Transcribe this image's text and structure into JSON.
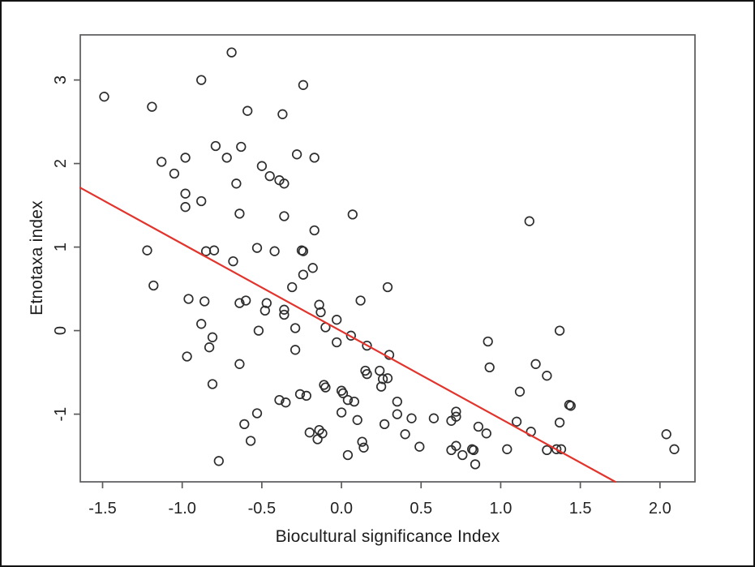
{
  "chart_data": {
    "type": "scatter",
    "title": "",
    "xlabel": "Biocultural significance Index",
    "ylabel": "Etnotaxa index",
    "xlim": [
      -1.64,
      2.22
    ],
    "ylim": [
      -1.81,
      3.54
    ],
    "grid": false,
    "legend": null,
    "frame_color": "#5a5a5c",
    "x_ticks": [
      "-1.5",
      "-1.0",
      "-0.5",
      "0.0",
      "0.5",
      "1.0",
      "1.5",
      "2.0"
    ],
    "x_tick_values": [
      -1.5,
      -1.0,
      -0.5,
      0.0,
      0.5,
      1.0,
      1.5,
      2.0
    ],
    "y_ticks": [
      "-1",
      "0",
      "1",
      "2",
      "3"
    ],
    "y_tick_values": [
      -1,
      0,
      1,
      2,
      3
    ],
    "marker": {
      "shape": "open-circle",
      "color": "#2d2d2d"
    },
    "regression_line": {
      "color": "#e2342c",
      "x1": -1.64,
      "y1": 1.71,
      "x2": 1.72,
      "y2": -1.81
    },
    "points": [
      [
        -0.69,
        3.33
      ],
      [
        -0.88,
        3.0
      ],
      [
        -1.49,
        2.8
      ],
      [
        -1.19,
        2.68
      ],
      [
        -0.59,
        2.63
      ],
      [
        -0.37,
        2.59
      ],
      [
        -0.24,
        2.94
      ],
      [
        -0.79,
        2.21
      ],
      [
        -0.63,
        2.2
      ],
      [
        -0.72,
        2.07
      ],
      [
        -0.98,
        2.07
      ],
      [
        -1.13,
        2.02
      ],
      [
        -1.05,
        1.88
      ],
      [
        -0.5,
        1.97
      ],
      [
        -0.45,
        1.85
      ],
      [
        -0.39,
        1.8
      ],
      [
        -0.36,
        1.76
      ],
      [
        -0.66,
        1.76
      ],
      [
        -0.28,
        2.11
      ],
      [
        -0.17,
        2.07
      ],
      [
        -0.98,
        1.64
      ],
      [
        -0.88,
        1.55
      ],
      [
        -0.98,
        1.48
      ],
      [
        -0.64,
        1.4
      ],
      [
        -0.36,
        1.37
      ],
      [
        0.07,
        1.39
      ],
      [
        -0.17,
        1.2
      ],
      [
        1.18,
        1.31
      ],
      [
        -1.22,
        0.96
      ],
      [
        -0.85,
        0.95
      ],
      [
        -0.8,
        0.96
      ],
      [
        -0.53,
        0.99
      ],
      [
        -0.42,
        0.95
      ],
      [
        -0.68,
        0.83
      ],
      [
        -0.24,
        0.95
      ],
      [
        -0.25,
        0.96
      ],
      [
        -0.18,
        0.75
      ],
      [
        -0.24,
        0.67
      ],
      [
        -0.31,
        0.52
      ],
      [
        -1.18,
        0.54
      ],
      [
        -0.96,
        0.38
      ],
      [
        -0.86,
        0.35
      ],
      [
        -0.64,
        0.33
      ],
      [
        -0.6,
        0.36
      ],
      [
        -0.47,
        0.33
      ],
      [
        -0.48,
        0.24
      ],
      [
        -0.36,
        0.25
      ],
      [
        -0.36,
        0.19
      ],
      [
        -0.88,
        0.08
      ],
      [
        -0.14,
        0.31
      ],
      [
        -0.13,
        0.22
      ],
      [
        -0.03,
        0.13
      ],
      [
        -0.1,
        0.04
      ],
      [
        -0.29,
        0.03
      ],
      [
        0.12,
        0.36
      ],
      [
        0.29,
        0.52
      ],
      [
        1.37,
        0.0
      ],
      [
        -0.81,
        -0.08
      ],
      [
        -0.83,
        -0.2
      ],
      [
        -0.97,
        -0.31
      ],
      [
        -0.52,
        0.0
      ],
      [
        -0.64,
        -0.4
      ],
      [
        -0.81,
        -0.64
      ],
      [
        0.06,
        -0.06
      ],
      [
        -0.03,
        -0.14
      ],
      [
        -0.29,
        -0.23
      ],
      [
        0.16,
        -0.18
      ],
      [
        0.3,
        -0.29
      ],
      [
        0.92,
        -0.13
      ],
      [
        0.93,
        -0.44
      ],
      [
        1.22,
        -0.4
      ],
      [
        1.29,
        -0.54
      ],
      [
        1.12,
        -0.73
      ],
      [
        0.15,
        -0.48
      ],
      [
        0.16,
        -0.52
      ],
      [
        0.24,
        -0.48
      ],
      [
        0.26,
        -0.58
      ],
      [
        0.29,
        -0.57
      ],
      [
        0.25,
        -0.67
      ],
      [
        -0.11,
        -0.65
      ],
      [
        -0.1,
        -0.68
      ],
      [
        -0.26,
        -0.76
      ],
      [
        -0.22,
        -0.78
      ],
      [
        0.0,
        -0.72
      ],
      [
        0.01,
        -0.75
      ],
      [
        0.04,
        -0.83
      ],
      [
        0.08,
        -0.85
      ],
      [
        0.35,
        -0.85
      ],
      [
        -0.39,
        -0.83
      ],
      [
        -0.35,
        -0.86
      ],
      [
        -0.53,
        -0.99
      ],
      [
        -0.61,
        -1.12
      ],
      [
        -0.57,
        -1.32
      ],
      [
        -0.77,
        -1.56
      ],
      [
        0.0,
        -0.98
      ],
      [
        0.35,
        -1.0
      ],
      [
        0.44,
        -1.05
      ],
      [
        0.58,
        -1.05
      ],
      [
        0.69,
        -1.08
      ],
      [
        0.72,
        -1.03
      ],
      [
        0.72,
        -0.97
      ],
      [
        0.27,
        -1.12
      ],
      [
        0.1,
        -1.07
      ],
      [
        0.4,
        -1.24
      ],
      [
        -0.2,
        -1.22
      ],
      [
        -0.14,
        -1.19
      ],
      [
        -0.12,
        -1.23
      ],
      [
        -0.15,
        -1.3
      ],
      [
        0.13,
        -1.33
      ],
      [
        0.14,
        -1.4
      ],
      [
        0.04,
        -1.49
      ],
      [
        0.49,
        -1.39
      ],
      [
        0.69,
        -1.43
      ],
      [
        0.72,
        -1.38
      ],
      [
        0.76,
        -1.49
      ],
      [
        0.82,
        -1.42
      ],
      [
        0.83,
        -1.43
      ],
      [
        0.84,
        -1.6
      ],
      [
        0.86,
        -1.15
      ],
      [
        0.91,
        -1.23
      ],
      [
        1.43,
        -0.89
      ],
      [
        1.44,
        -0.9
      ],
      [
        1.1,
        -1.09
      ],
      [
        1.37,
        -1.1
      ],
      [
        1.19,
        -1.21
      ],
      [
        1.04,
        -1.42
      ],
      [
        1.29,
        -1.43
      ],
      [
        1.35,
        -1.42
      ],
      [
        1.38,
        -1.42
      ],
      [
        2.04,
        -1.24
      ],
      [
        2.09,
        -1.42
      ]
    ]
  }
}
